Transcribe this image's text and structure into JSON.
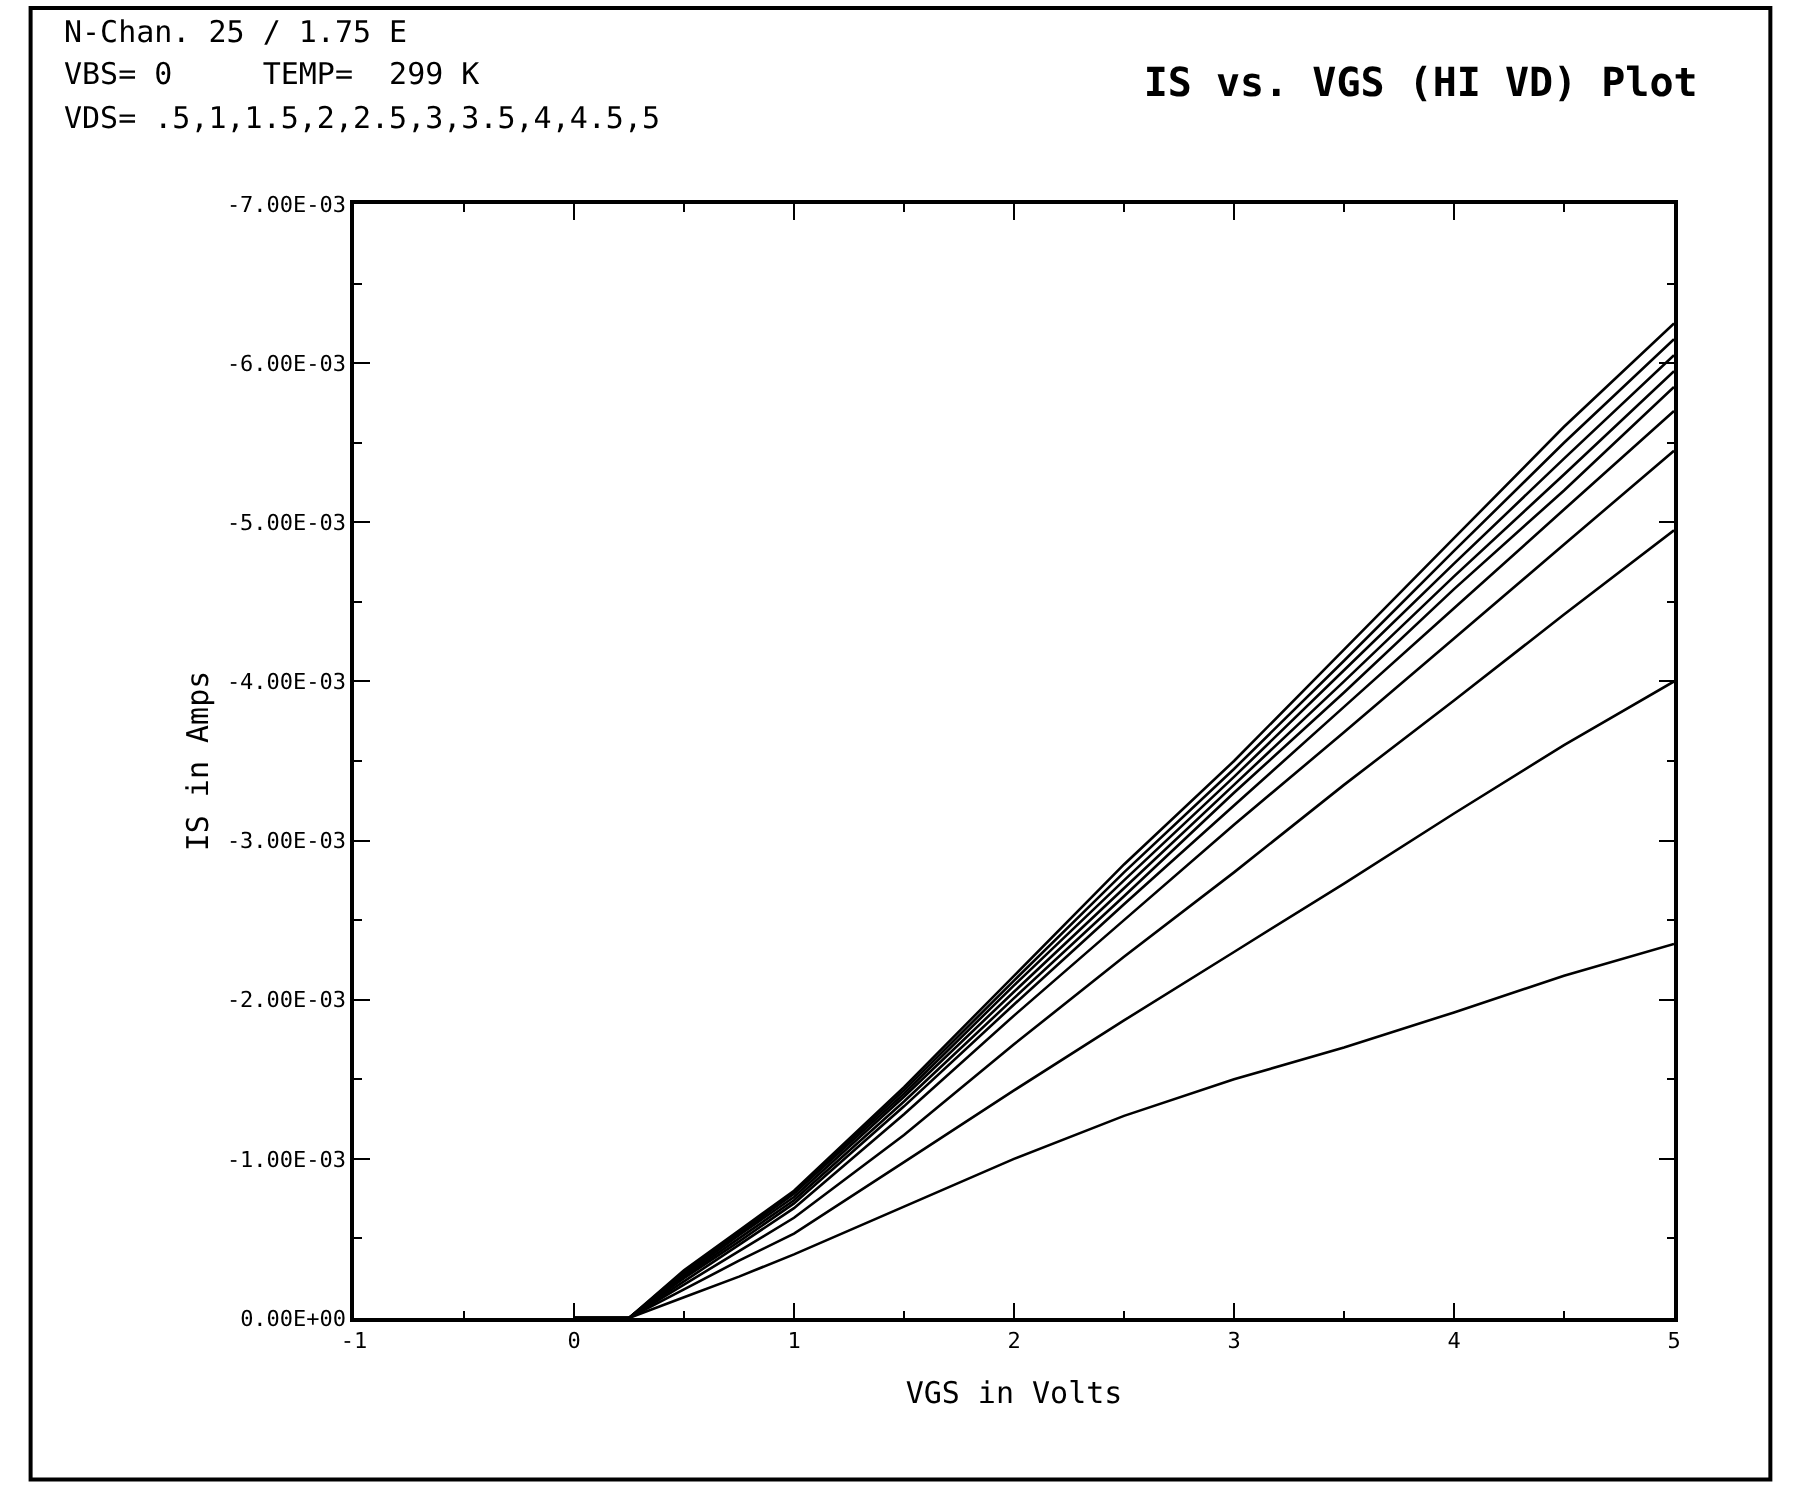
{
  "chart_data": {
    "type": "line",
    "title": "IS vs. VGS (HI VD) Plot",
    "xlabel": "VGS in Volts",
    "ylabel": "IS in Amps",
    "annotations": [
      "N-Chan. 25 / 1.75 E",
      "VBS= 0     TEMP=  299 K",
      "VDS= .5,1,1.5,2,2.5,3,3.5,4,4.5,5"
    ],
    "x": [
      0,
      0.25,
      0.5,
      0.75,
      1,
      1.5,
      2,
      2.5,
      3,
      3.5,
      4,
      4.5,
      5
    ],
    "series": [
      {
        "color": "#000000",
        "values": [
          0,
          0,
          -0.00013,
          -0.00026,
          -0.0004,
          -0.0007,
          -0.001,
          -0.00127,
          -0.0015,
          -0.0017,
          -0.00192,
          -0.00215,
          -0.00235
        ]
      },
      {
        "color": "#000000",
        "values": [
          0,
          0,
          -0.00018,
          -0.00036,
          -0.00053,
          -0.00098,
          -0.00143,
          -0.00187,
          -0.0023,
          -0.00273,
          -0.00317,
          -0.0036,
          -0.004
        ]
      },
      {
        "color": "#000000",
        "values": [
          0,
          0,
          -0.00021,
          -0.00042,
          -0.00063,
          -0.00115,
          -0.00172,
          -0.00227,
          -0.0028,
          -0.00335,
          -0.00388,
          -0.00442,
          -0.00495
        ]
      },
      {
        "color": "#000000",
        "values": [
          0,
          0,
          -0.00023,
          -0.00046,
          -0.00069,
          -0.00128,
          -0.0019,
          -0.0025,
          -0.0031,
          -0.00368,
          -0.00427,
          -0.00486,
          -0.00545
        ]
      },
      {
        "color": "#000000",
        "values": [
          0,
          0,
          -0.00025,
          -0.00048,
          -0.00072,
          -0.00133,
          -0.00197,
          -0.0026,
          -0.00322,
          -0.00384,
          -0.00446,
          -0.00508,
          -0.0057
        ]
      },
      {
        "color": "#000000",
        "values": [
          0,
          0,
          -0.00026,
          -0.0005,
          -0.00074,
          -0.00136,
          -0.00201,
          -0.00265,
          -0.0033,
          -0.00393,
          -0.00458,
          -0.0052,
          -0.00585
        ]
      },
      {
        "color": "#000000",
        "values": [
          0,
          0,
          -0.00027,
          -0.00052,
          -0.00076,
          -0.00139,
          -0.00205,
          -0.0027,
          -0.00335,
          -0.004,
          -0.00466,
          -0.0053,
          -0.00595
        ]
      },
      {
        "color": "#000000",
        "values": [
          0,
          0,
          -0.00028,
          -0.00053,
          -0.00078,
          -0.00141,
          -0.00209,
          -0.00275,
          -0.0034,
          -0.00407,
          -0.00474,
          -0.0054,
          -0.00605
        ]
      },
      {
        "color": "#000000",
        "values": [
          0,
          0,
          -0.00029,
          -0.00054,
          -0.00079,
          -0.00143,
          -0.00212,
          -0.0028,
          -0.00345,
          -0.00413,
          -0.00482,
          -0.0055,
          -0.00615
        ]
      },
      {
        "color": "#000000",
        "values": [
          0,
          0,
          -0.0003,
          -0.00055,
          -0.0008,
          -0.00145,
          -0.00215,
          -0.00285,
          -0.0035,
          -0.0042,
          -0.0049,
          -0.0056,
          -0.00625
        ]
      }
    ],
    "xlim": [
      -1,
      5
    ],
    "xticks": [
      {
        "value": -1,
        "label": "-1"
      },
      0,
      1,
      2,
      3,
      4,
      5
    ],
    "ylim": [
      0,
      -0.007
    ],
    "yticks": [
      {
        "value": 0,
        "label": "0.00E+00"
      },
      {
        "value": -0.001,
        "label": "-1.00E-03"
      },
      {
        "value": -0.002,
        "label": "-2.00E-03"
      },
      {
        "value": -0.003,
        "label": "-3.00E-03"
      },
      {
        "value": -0.004,
        "label": "-4.00E-03"
      },
      {
        "value": -0.005,
        "label": "-5.00E-03"
      },
      {
        "value": -0.006,
        "label": "-6.00E-03"
      },
      {
        "value": -0.007,
        "label": "-7.00E-03"
      }
    ],
    "line_style": "solid",
    "marker": "none"
  }
}
